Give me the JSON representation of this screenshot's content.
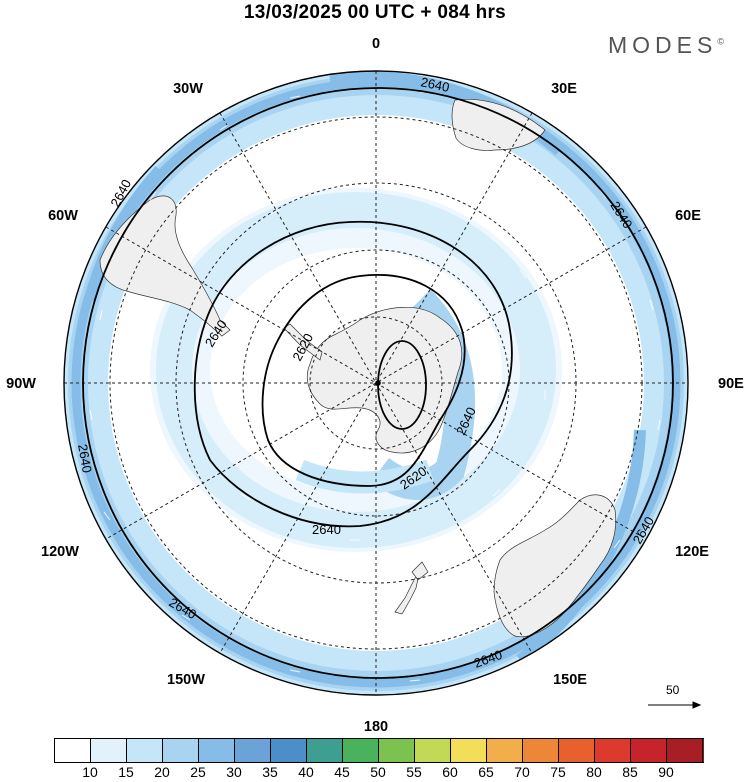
{
  "header": {
    "title": "13/03/2025  00 UTC  + 084 hrs",
    "brand": "MODES",
    "brand_mark": "©"
  },
  "map": {
    "projection": "south-polar-stereographic",
    "longitude_labels": [
      "0",
      "30E",
      "60E",
      "90E",
      "120E",
      "150E",
      "180",
      "150W",
      "120W",
      "90W",
      "60W",
      "30W"
    ],
    "contour_labels": [
      "2640",
      "2640",
      "2640",
      "2640",
      "2640",
      "2640",
      "2640",
      "2620",
      "2620",
      "2640",
      "2640"
    ],
    "vector_reference": {
      "label": "50",
      "icon": "arrow-right-icon"
    }
  },
  "colorbar": {
    "tick_labels": [
      "10",
      "15",
      "20",
      "25",
      "30",
      "35",
      "40",
      "45",
      "50",
      "55",
      "60",
      "65",
      "70",
      "75",
      "80",
      "85",
      "90"
    ],
    "colors": [
      "#ffffff",
      "#e1f2fc",
      "#c5e6f8",
      "#a8d4f1",
      "#86bde8",
      "#6ba3d9",
      "#4b8ec8",
      "#3f9e92",
      "#48b25c",
      "#7cc24f",
      "#c2d955",
      "#f3de5a",
      "#f2ae4b",
      "#ee8638",
      "#e8602e",
      "#db3a2c",
      "#c7232b",
      "#a81e25",
      "#8a1a1e"
    ]
  }
}
